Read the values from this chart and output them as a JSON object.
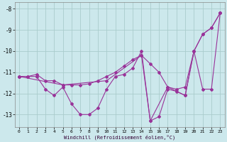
{
  "xlabel": "Windchill (Refroidissement éolien,°C)",
  "bg_color": "#cce8ec",
  "grid_color": "#aacccc",
  "line_color": "#993399",
  "xlim": [
    -0.5,
    23.5
  ],
  "ylim": [
    -13.6,
    -7.7
  ],
  "yticks": [
    -13,
    -12,
    -11,
    -10,
    -9,
    -8
  ],
  "xticks": [
    0,
    1,
    2,
    3,
    4,
    5,
    6,
    7,
    8,
    9,
    10,
    11,
    12,
    13,
    14,
    15,
    16,
    17,
    18,
    19,
    20,
    21,
    22,
    23
  ],
  "series": [
    {
      "x": [
        0,
        1,
        2,
        3,
        4,
        5,
        6,
        7,
        8,
        9,
        10,
        11,
        12,
        13,
        14,
        15,
        16,
        17,
        18,
        19,
        20,
        21,
        22,
        23
      ],
      "y": [
        -11.2,
        -11.2,
        -11.2,
        -11.8,
        -12.1,
        -11.7,
        -12.5,
        -13.0,
        -13.0,
        -12.7,
        -11.8,
        -11.2,
        -11.1,
        -10.8,
        -10.0,
        -13.3,
        -13.1,
        -11.8,
        -11.9,
        -12.1,
        -10.0,
        -11.8,
        -11.8,
        -8.2
      ]
    },
    {
      "x": [
        0,
        1,
        2,
        3,
        4,
        5,
        6,
        7,
        8,
        9,
        10,
        11,
        12,
        13,
        14,
        15,
        16,
        17,
        18,
        19,
        20,
        21,
        22,
        23
      ],
      "y": [
        -11.2,
        -11.2,
        -11.1,
        -11.4,
        -11.4,
        -11.6,
        -11.6,
        -11.6,
        -11.55,
        -11.4,
        -11.2,
        -11.0,
        -10.7,
        -10.4,
        -10.2,
        -10.6,
        -11.0,
        -11.7,
        -11.8,
        -11.7,
        -10.0,
        -9.2,
        -8.9,
        -8.2
      ]
    },
    {
      "x": [
        0,
        5,
        10,
        14,
        15,
        17,
        19,
        20,
        21,
        22,
        23
      ],
      "y": [
        -11.2,
        -11.6,
        -11.4,
        -10.2,
        -13.3,
        -11.7,
        -12.1,
        -10.0,
        -9.2,
        -8.9,
        -8.2
      ]
    }
  ]
}
